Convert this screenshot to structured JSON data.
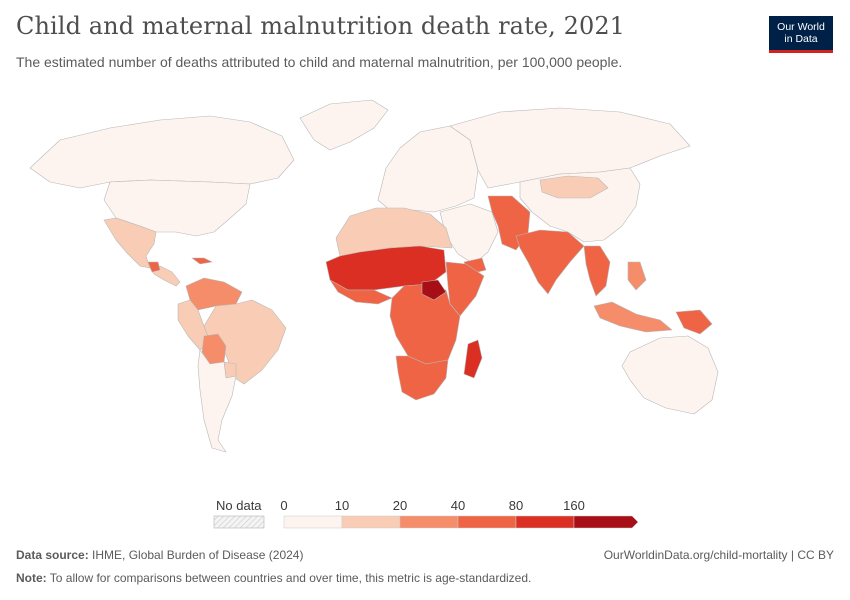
{
  "header": {
    "title": "Child and maternal malnutrition death rate, 2021",
    "subtitle": "The estimated number of deaths attributed to child and maternal malnutrition, per 100,000 people."
  },
  "logo": {
    "line1": "Our World",
    "line2": "in Data"
  },
  "legend": {
    "no_data_label": "No data",
    "tick_labels": [
      "0",
      "10",
      "20",
      "40",
      "80",
      "160"
    ],
    "bin_colors": [
      "#fdf4ef",
      "#f9cdb5",
      "#f58c6a",
      "#ef6445",
      "#dc2f24",
      "#a80e16"
    ],
    "no_data_color": "#e6e6e6"
  },
  "footer": {
    "source_label": "Data source:",
    "source_text": " IHME, Global Burden of Disease (2024)",
    "credit": "OurWorldinData.org/child-mortality | CC BY",
    "note_label": "Note:",
    "note_text": " To allow for comparisons between countries and over time, this metric is age-standardized."
  },
  "map_regions": [
    {
      "name": "greenland",
      "bin": 0
    },
    {
      "name": "north-america",
      "bin": 0
    },
    {
      "name": "usa",
      "bin": 0
    },
    {
      "name": "mexico",
      "bin": 1
    },
    {
      "name": "central-america",
      "bin": 1
    },
    {
      "name": "guatemala",
      "bin": 3
    },
    {
      "name": "haiti",
      "bin": 3
    },
    {
      "name": "venezuela-colombia",
      "bin": 2
    },
    {
      "name": "brazil",
      "bin": 1
    },
    {
      "name": "peru",
      "bin": 1
    },
    {
      "name": "bolivia",
      "bin": 2
    },
    {
      "name": "paraguay",
      "bin": 1
    },
    {
      "name": "chile-argentina",
      "bin": 0
    },
    {
      "name": "europe",
      "bin": 0
    },
    {
      "name": "russia",
      "bin": 0
    },
    {
      "name": "north-africa",
      "bin": 1
    },
    {
      "name": "sahel",
      "bin": 4
    },
    {
      "name": "west-africa-coast",
      "bin": 3
    },
    {
      "name": "central-east-africa",
      "bin": 3
    },
    {
      "name": "south-sudan",
      "bin": 5
    },
    {
      "name": "somalia",
      "bin": 3
    },
    {
      "name": "southern-africa",
      "bin": 3
    },
    {
      "name": "madagascar",
      "bin": 4
    },
    {
      "name": "middle-east",
      "bin": 0
    },
    {
      "name": "yemen",
      "bin": 3
    },
    {
      "name": "afghanistan-pakistan",
      "bin": 3
    },
    {
      "name": "india",
      "bin": 3
    },
    {
      "name": "mongolia",
      "bin": 1
    },
    {
      "name": "china",
      "bin": 0
    },
    {
      "name": "southeast-asia",
      "bin": 3
    },
    {
      "name": "indonesia",
      "bin": 2
    },
    {
      "name": "papua-new-guinea",
      "bin": 3
    },
    {
      "name": "philippines",
      "bin": 2
    },
    {
      "name": "australia",
      "bin": 0
    }
  ]
}
